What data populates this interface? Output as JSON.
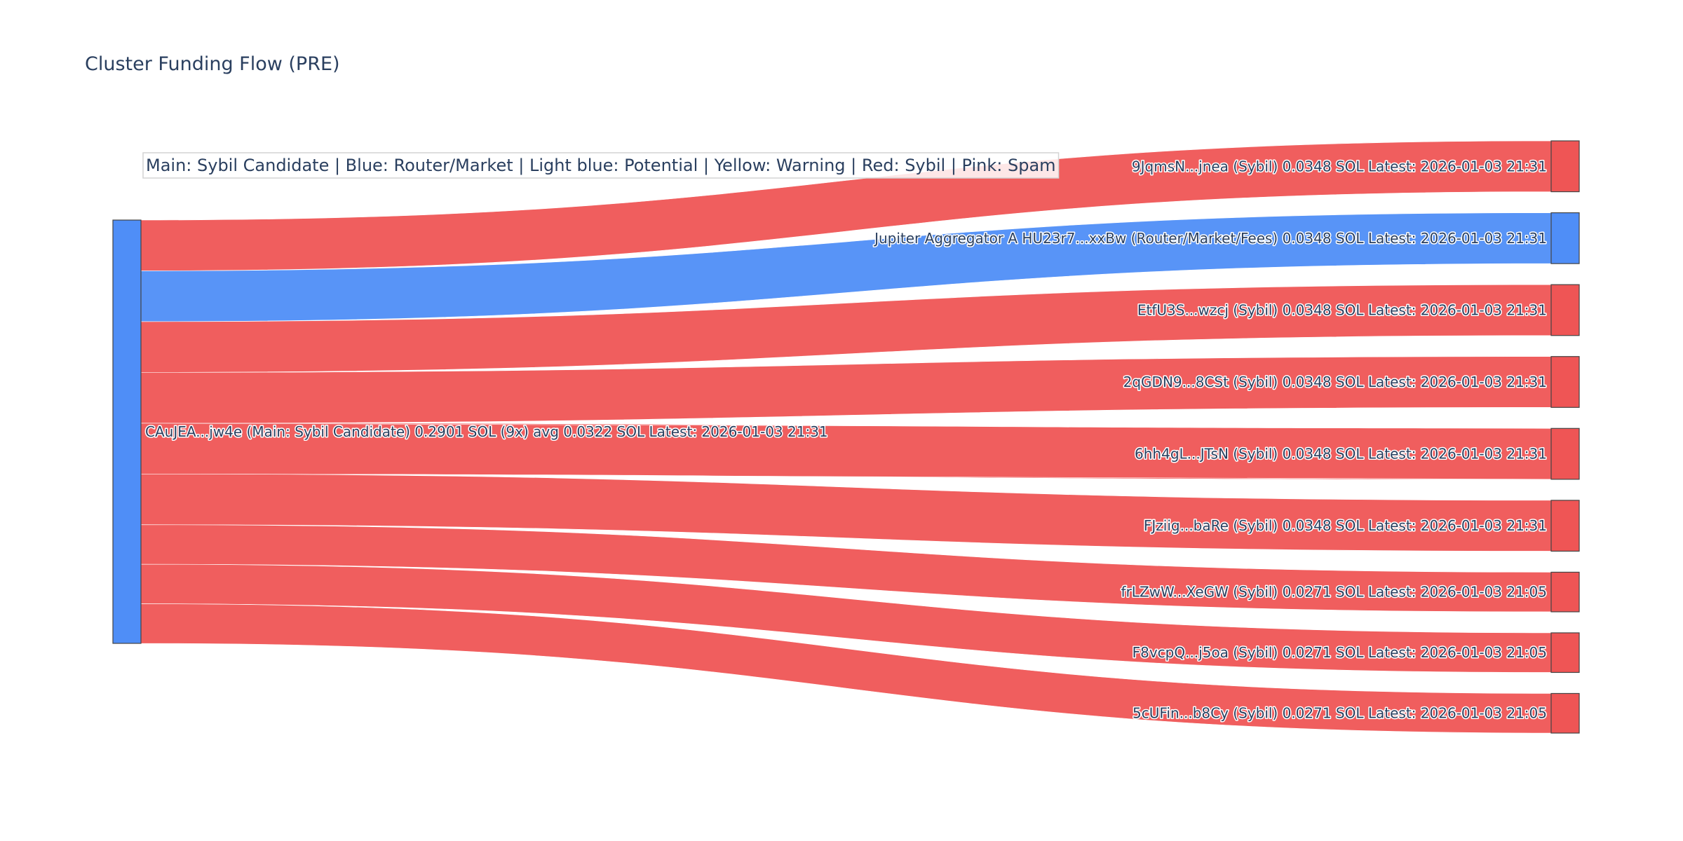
{
  "chart_data": {
    "type": "sankey",
    "title": "Cluster Funding Flow (PRE)",
    "annotation": "Main: Sybil Candidate  |  Blue: Router/Market | Light blue: Potential | Yellow: Warning | Red: Sybil | Pink: Spam",
    "source": {
      "label": "CAuJEA...jw4e (Main: Sybil Candidate) 0.2901 SOL (9x) avg 0.0322 SOL Latest: 2026-01-03 21:31",
      "color": "#4f8ef7"
    },
    "targets": [
      {
        "label": "9JqmsN...jnea (Sybil) 0.0348 SOL Latest: 2026-01-03 21:31",
        "value": 0.0348,
        "color": "#ef5555"
      },
      {
        "label": "Jupiter Aggregator A HU23r7...xxBw (Router/Market/Fees) 0.0348 SOL Latest: 2026-01-03 21:31",
        "value": 0.0348,
        "color": "#4f8ef7"
      },
      {
        "label": "EtfU3S...wzcj (Sybil) 0.0348 SOL Latest: 2026-01-03 21:31",
        "value": 0.0348,
        "color": "#ef5555"
      },
      {
        "label": "2qGDN9...8CSt (Sybil) 0.0348 SOL Latest: 2026-01-03 21:31",
        "value": 0.0348,
        "color": "#ef5555"
      },
      {
        "label": "6hh4gL...JTsN (Sybil) 0.0348 SOL Latest: 2026-01-03 21:31",
        "value": 0.0348,
        "color": "#ef5555"
      },
      {
        "label": "FJziig...baRe (Sybil) 0.0348 SOL Latest: 2026-01-03 21:31",
        "value": 0.0348,
        "color": "#ef5555"
      },
      {
        "label": "frLZwW...XeGW (Sybil) 0.0271 SOL Latest: 2026-01-03 21:05",
        "value": 0.0271,
        "color": "#ef5555"
      },
      {
        "label": "F8vcpQ...j5oa (Sybil) 0.0271 SOL Latest: 2026-01-03 21:05",
        "value": 0.0271,
        "color": "#ef5555"
      },
      {
        "label": "5cUFin...b8Cy (Sybil) 0.0271 SOL Latest: 2026-01-03 21:05",
        "value": 0.0271,
        "color": "#ef5555"
      }
    ]
  }
}
